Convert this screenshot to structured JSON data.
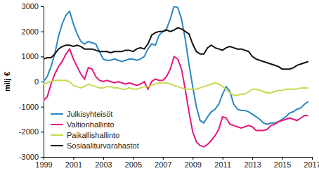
{
  "chart_data": {
    "type": "line",
    "ylabel": "milj €",
    "x": [
      1999,
      1999.25,
      1999.5,
      1999.75,
      2000,
      2000.25,
      2000.5,
      2000.75,
      2001,
      2001.25,
      2001.5,
      2001.75,
      2002,
      2002.25,
      2002.5,
      2002.75,
      2003,
      2003.25,
      2003.5,
      2003.75,
      2004,
      2004.25,
      2004.5,
      2004.75,
      2005,
      2005.25,
      2005.5,
      2005.75,
      2006,
      2006.25,
      2006.5,
      2006.75,
      2007,
      2007.25,
      2007.5,
      2007.75,
      2008,
      2008.25,
      2008.5,
      2008.75,
      2009,
      2009.25,
      2009.5,
      2009.75,
      2010,
      2010.25,
      2010.5,
      2010.75,
      2011,
      2011.25,
      2011.5,
      2011.75,
      2012,
      2012.25,
      2012.5,
      2012.75,
      2013,
      2013.25,
      2013.5,
      2013.75,
      2014,
      2014.25,
      2014.5,
      2014.75,
      2015,
      2015.25,
      2015.5,
      2015.75,
      2016,
      2016.25,
      2016.5,
      2016.75
    ],
    "series": [
      {
        "name": "Julkisyhteisöt",
        "color": "#2a87c1",
        "values": [
          0,
          200,
          600,
          1100,
          1800,
          2300,
          2650,
          2800,
          2300,
          1900,
          1600,
          1500,
          1600,
          1550,
          1500,
          1200,
          900,
          850,
          850,
          900,
          850,
          800,
          850,
          900,
          900,
          850,
          900,
          1000,
          1300,
          1500,
          1450,
          1850,
          2000,
          2100,
          2500,
          3000,
          2950,
          2500,
          1700,
          700,
          -200,
          -1000,
          -1550,
          -1650,
          -1400,
          -1200,
          -1100,
          -900,
          -500,
          -200,
          -400,
          -900,
          -1100,
          -1150,
          -1150,
          -1200,
          -1300,
          -1400,
          -1500,
          -1650,
          -1700,
          -1650,
          -1650,
          -1600,
          -1500,
          -1400,
          -1250,
          -1200,
          -1100,
          -1050,
          -900,
          -800
        ]
      },
      {
        "name": "Valtionhallinto",
        "color": "#e5177e",
        "values": [
          -750,
          -600,
          -100,
          300,
          600,
          800,
          1100,
          1300,
          900,
          600,
          300,
          100,
          550,
          500,
          200,
          50,
          0,
          50,
          0,
          -50,
          0,
          -50,
          -100,
          -50,
          -100,
          -150,
          -100,
          0,
          -300,
          0,
          100,
          50,
          50,
          200,
          500,
          1000,
          900,
          500,
          -300,
          -1200,
          -2000,
          -2400,
          -2550,
          -2600,
          -2500,
          -2350,
          -2150,
          -1900,
          -1400,
          -1450,
          -1700,
          -1750,
          -1800,
          -1850,
          -1800,
          -1750,
          -1800,
          -1950,
          -1950,
          -1950,
          -1900,
          -1750,
          -1700,
          -1600,
          -1550,
          -1500,
          -1450,
          -1500,
          -1550,
          -1450,
          -1350,
          -1350
        ]
      },
      {
        "name": "Paikallishallinto",
        "color": "#c5da4f",
        "values": [
          -100,
          -50,
          0,
          50,
          50,
          50,
          50,
          0,
          -150,
          -200,
          -250,
          -200,
          -100,
          -150,
          -200,
          -250,
          -250,
          -200,
          -200,
          -250,
          -250,
          -300,
          -300,
          -250,
          -300,
          -300,
          -250,
          -200,
          -200,
          -150,
          -100,
          -50,
          -50,
          -50,
          -100,
          -150,
          -200,
          -250,
          -300,
          -300,
          -300,
          -300,
          -250,
          -200,
          -150,
          -100,
          -50,
          -100,
          -200,
          -300,
          -450,
          -550,
          -550,
          -500,
          -500,
          -400,
          -300,
          -300,
          -350,
          -400,
          -450,
          -450,
          -400,
          -350,
          -350,
          -300,
          -300,
          -300,
          -300,
          -250,
          -250,
          -250
        ]
      },
      {
        "name": "Sosiaaliturvarahastot",
        "color": "#111111",
        "values": [
          900,
          950,
          950,
          1100,
          1300,
          1400,
          1450,
          1450,
          1400,
          1450,
          1400,
          1300,
          1300,
          1300,
          1250,
          1200,
          1200,
          1200,
          1150,
          1200,
          1200,
          1200,
          1250,
          1250,
          1200,
          1300,
          1350,
          1300,
          1500,
          1850,
          1950,
          2000,
          2000,
          2050,
          2000,
          2050,
          2150,
          2100,
          2000,
          1900,
          1500,
          1200,
          1100,
          1100,
          1350,
          1450,
          1350,
          1300,
          1250,
          1350,
          1400,
          1350,
          1300,
          1300,
          1250,
          1200,
          1000,
          900,
          850,
          800,
          750,
          700,
          650,
          600,
          500,
          500,
          500,
          550,
          650,
          700,
          750,
          800
        ]
      }
    ],
    "xlim": [
      1999,
      2017
    ],
    "xticks": [
      1999,
      2001,
      2003,
      2005,
      2007,
      2009,
      2011,
      2013,
      2015,
      2017
    ],
    "ylim": [
      -3000,
      3000
    ],
    "yticks": [
      -3000,
      -2000,
      -1000,
      0,
      1000,
      2000,
      3000
    ],
    "grid": false,
    "legend": "lower left"
  }
}
